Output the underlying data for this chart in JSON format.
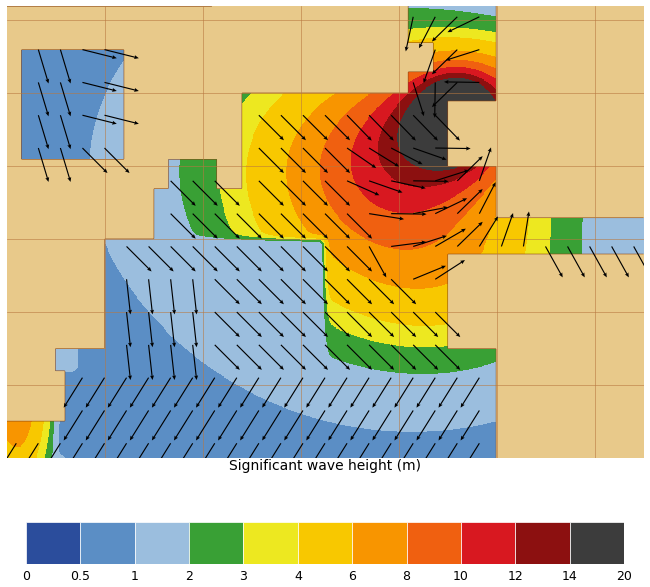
{
  "title": "Significant wave height (m)",
  "colorbar_levels": [
    0,
    0.5,
    1,
    2,
    3,
    4,
    6,
    8,
    10,
    12,
    14,
    20
  ],
  "colorbar_labels": [
    "0",
    "0.5",
    "1",
    "2",
    "3",
    "4",
    "6",
    "8",
    "10",
    "12",
    "14",
    "20"
  ],
  "colorbar_colors": [
    "#2B4D9C",
    "#5B8EC5",
    "#9BBEDE",
    "#39A035",
    "#EDE820",
    "#F8C800",
    "#F89500",
    "#F06010",
    "#D81820",
    "#8C1010",
    "#3C3C3C"
  ],
  "land_color": "#E8C98A",
  "land_outline": "#8B4513",
  "grid_color": "#B87840",
  "map_lon_min": -100,
  "map_lon_max": 30,
  "map_lat_min": 10,
  "map_lat_max": 72,
  "fig_width": 6.5,
  "fig_height": 5.87,
  "dpi": 100,
  "colorbar_label_fontsize": 9,
  "title_fontsize": 10,
  "grid_lons": [
    -100,
    -80,
    -60,
    -40,
    -20,
    0,
    20
  ],
  "grid_lats": [
    10,
    20,
    30,
    40,
    50,
    60,
    70
  ]
}
